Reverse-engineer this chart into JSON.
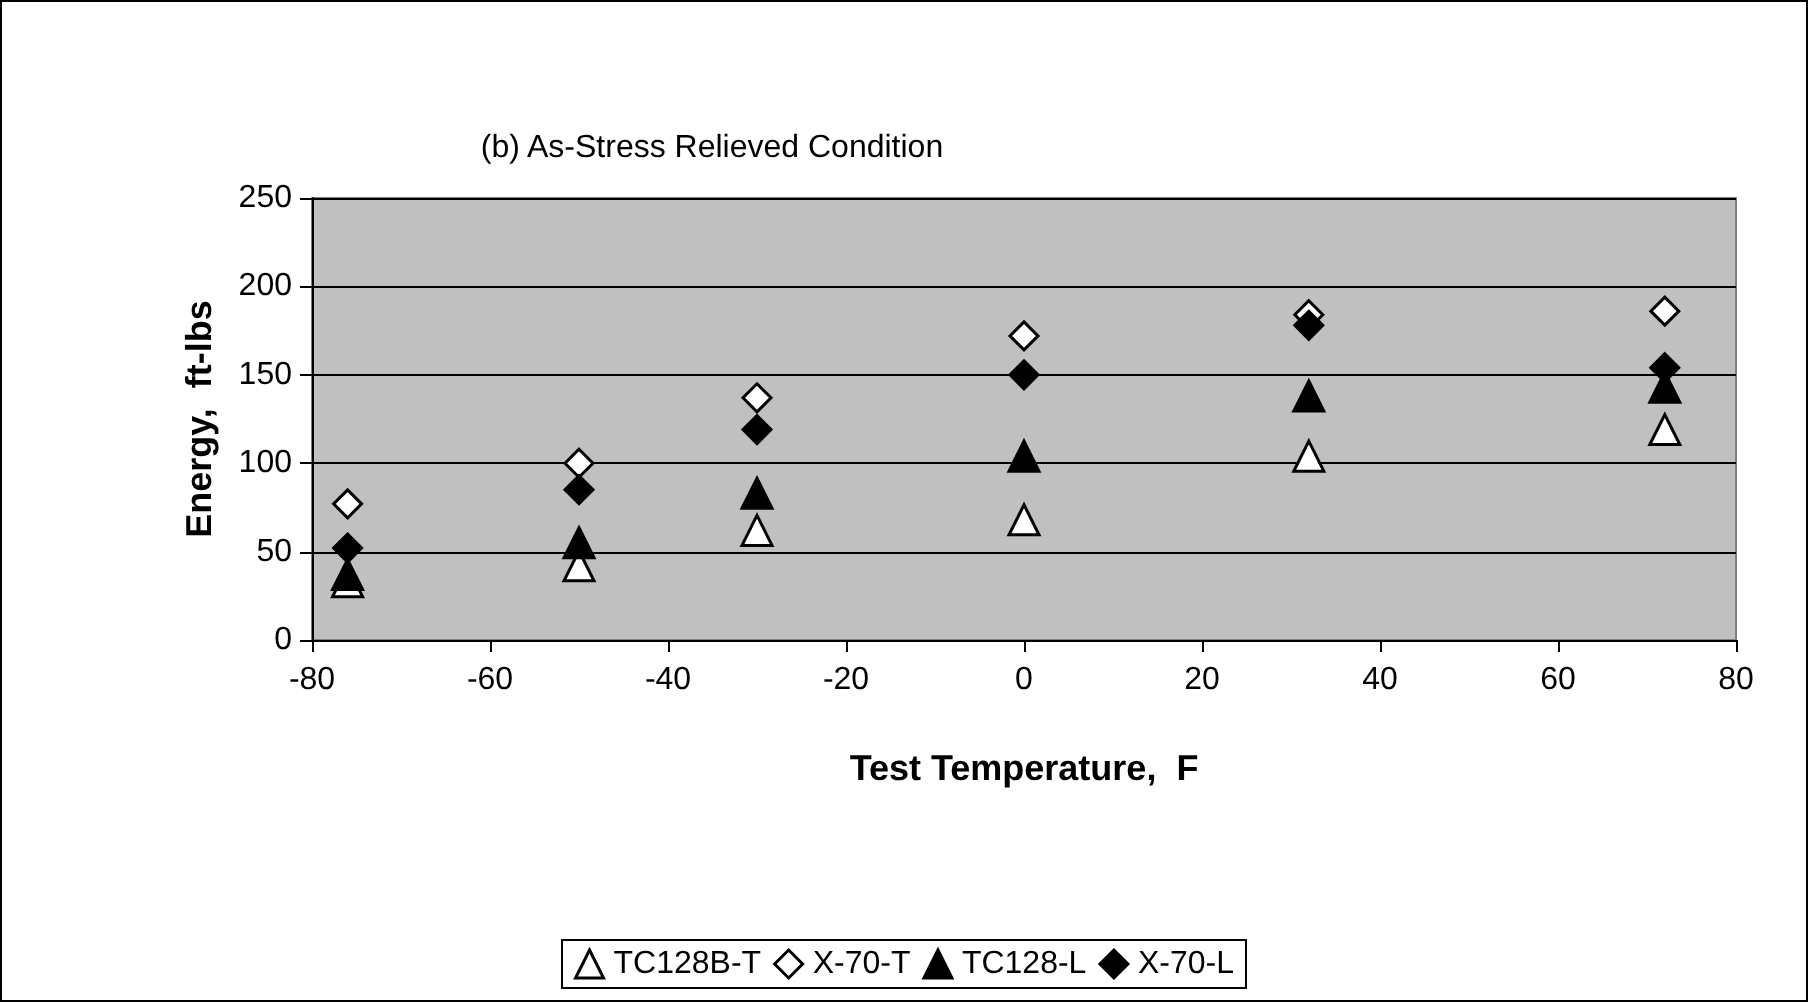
{
  "chart_data": {
    "type": "scatter",
    "title": "(b) As-Stress Relieved Condition",
    "xlabel": "Test Temperature,  F",
    "ylabel": "Energy,  ft-lbs",
    "x": [
      -76,
      -50,
      -30,
      0,
      32,
      72
    ],
    "series": [
      {
        "name": "TC128B-T",
        "color": "#ffffff",
        "marker": "triangle",
        "values": [
          33,
          42,
          62,
          68,
          104,
          119
        ]
      },
      {
        "name": "X-70-T",
        "color": "#ffffff",
        "marker": "diamond",
        "values": [
          77,
          100,
          137,
          172,
          184,
          186
        ]
      },
      {
        "name": "TC128-L",
        "color": "#000000",
        "marker": "triangle",
        "values": [
          37,
          55,
          83,
          104,
          138,
          143
        ]
      },
      {
        "name": "X-70-L",
        "color": "#000000",
        "marker": "diamond",
        "values": [
          52,
          85,
          119,
          150,
          178,
          154
        ]
      }
    ],
    "xlim": [
      -80,
      80
    ],
    "xticks": [
      -80,
      -60,
      -40,
      -20,
      0,
      20,
      40,
      60,
      80
    ],
    "ylim": [
      0,
      250
    ],
    "yticks": [
      0,
      50,
      100,
      150,
      200,
      250
    ],
    "grid": "y",
    "legend": "bottom"
  }
}
